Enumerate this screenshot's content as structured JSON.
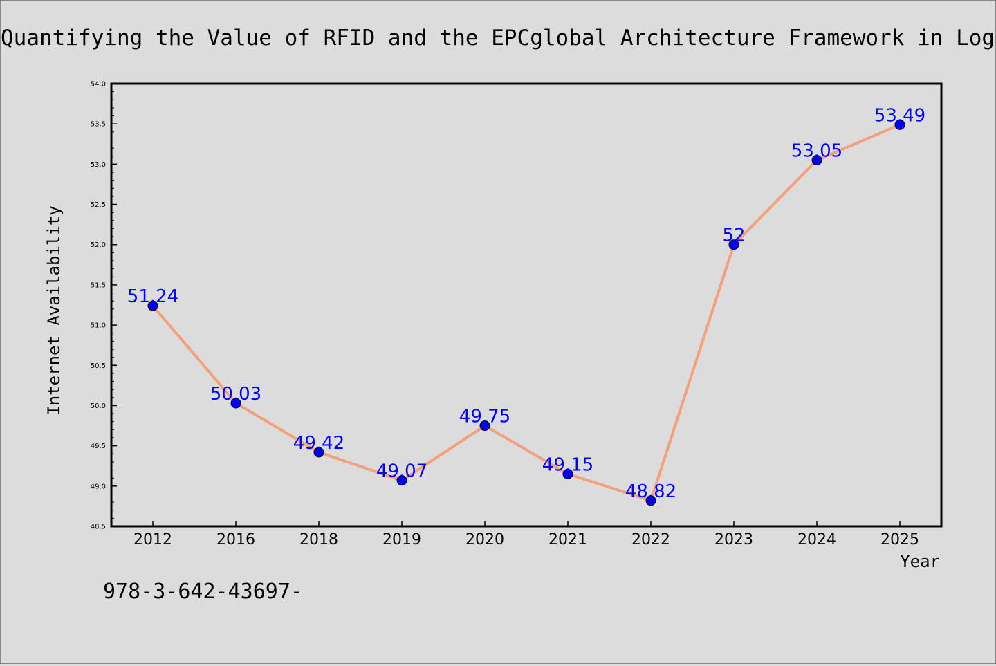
{
  "chart_data": {
    "type": "line",
    "title": "Quantifying the Value of RFID and the EPCglobal Architecture Framework in Logist",
    "xlabel": "Year",
    "ylabel": "Internet Availability",
    "categories": [
      "2012",
      "2016",
      "2018",
      "2019",
      "2020",
      "2021",
      "2022",
      "2023",
      "2024",
      "2025"
    ],
    "series": [
      {
        "values": [
          51.24,
          50.03,
          49.42,
          49.07,
          49.75,
          49.15,
          48.82,
          52,
          53.05,
          53.49
        ],
        "labels": [
          "51.24",
          "50.03",
          "49.42",
          "49.07",
          "49.75",
          "49.15",
          "48.82",
          "52",
          "53.05",
          "53.49"
        ],
        "line_color": "#f4a07c",
        "marker_color": "#0000ee"
      }
    ],
    "ylim": [
      48.5,
      54.0
    ],
    "yticks": [
      "48.5",
      "49.0",
      "49.5",
      "50.0",
      "50.5",
      "51.0",
      "51.5",
      "52.0",
      "52.5",
      "53.0",
      "53.5",
      "54.0"
    ],
    "grid": false,
    "label_color": "#0000ff"
  },
  "footnote": "978-3-642-43697-"
}
